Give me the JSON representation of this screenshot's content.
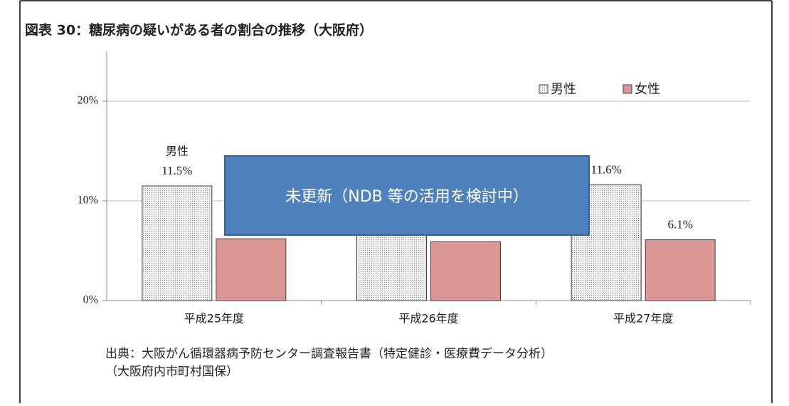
{
  "chart_data": {
    "type": "bar",
    "title": "図表 30：糖尿病の疑いがある者の割合の推移（大阪府）",
    "categories": [
      "平成25年度",
      "平成26年度",
      "平成27年度"
    ],
    "series": [
      {
        "name": "男性",
        "color": "#e8e8e8",
        "pattern": "dotted",
        "values": [
          11.5,
          11.4,
          11.6
        ],
        "value_labels": [
          "11.5%",
          null,
          "11.6%"
        ]
      },
      {
        "name": "女性",
        "color": "#d99694",
        "values": [
          6.2,
          5.9,
          6.1
        ],
        "value_labels": [
          null,
          null,
          "6.1%"
        ]
      }
    ],
    "ylim": [
      0,
      25
    ],
    "yticks": [
      {
        "value": 0,
        "label": "0%"
      },
      {
        "value": 10,
        "label": "10%"
      },
      {
        "value": 20,
        "label": "20%"
      }
    ],
    "grid": true,
    "legend": "top-right",
    "annotation": "未更新（NDB 等の活用を検討中）",
    "source": [
      "出典：大阪がん循環器病予防センター調査報告書（特定健診・医療費データ分析）",
      "（大阪府内市町村国保）"
    ]
  }
}
